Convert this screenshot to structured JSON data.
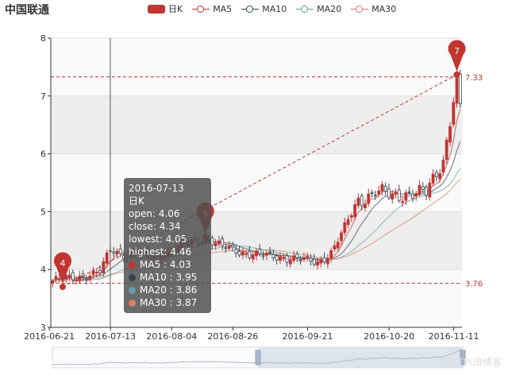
{
  "title": "中国联通",
  "watermark": "@ITPUB博客",
  "colors": {
    "up": "#c23531",
    "down": "#314656",
    "ma5": "#c23531",
    "ma10": "#2f4554",
    "ma20": "#61a0a8",
    "ma30": "#d48265"
  },
  "legend": [
    {
      "label": "日K",
      "type": "candle",
      "color": "#c23531"
    },
    {
      "label": "MA5",
      "color": "#c23531"
    },
    {
      "label": "MA10",
      "color": "#2f4554"
    },
    {
      "label": "MA20",
      "color": "#61a0a8"
    },
    {
      "label": "MA30",
      "color": "#d48265"
    }
  ],
  "chart_data": {
    "type": "candlestick",
    "title": "中国联通",
    "ylim": [
      3,
      8
    ],
    "yticks": [
      3,
      4,
      5,
      6,
      7,
      8
    ],
    "xticks": [
      "2016-06-21",
      "2016-07-13",
      "2016-08-04",
      "2016-08-26",
      "2016-09-21",
      "2016-10-20",
      "2016-11-11"
    ],
    "grid_bands": true,
    "markpoints": [
      {
        "label": "4",
        "date_index": 3,
        "value": 3.7
      },
      {
        "label": "5",
        "date_index": 45,
        "value": 4.56
      },
      {
        "label": "7",
        "date_index": 119,
        "value": 7.37
      }
    ],
    "marklines": [
      {
        "label": "7.33",
        "value": 7.33
      },
      {
        "label": "3.76",
        "value": 3.76
      }
    ],
    "axis_pointer_index": 17,
    "tooltip": {
      "date": "2016-07-13",
      "series": "日K",
      "open": "open: 4.06",
      "close": "close: 4.34",
      "lowest": "lowest: 4.05",
      "highest": "highest: 4.46",
      "ma": [
        {
          "text": "MA5 : 4.03",
          "color": "#c23531"
        },
        {
          "text": "MA10 : 3.95",
          "color": "#2f4554"
        },
        {
          "text": "MA20 : 3.86",
          "color": "#61a0a8"
        },
        {
          "text": "MA30 : 3.87",
          "color": "#d48265"
        }
      ]
    },
    "close_anchors": [
      [
        0,
        3.8
      ],
      [
        10,
        3.9
      ],
      [
        14,
        3.95
      ],
      [
        17,
        4.34
      ],
      [
        22,
        4.25
      ],
      [
        30,
        4.2
      ],
      [
        40,
        4.45
      ],
      [
        45,
        4.55
      ],
      [
        50,
        4.38
      ],
      [
        60,
        4.25
      ],
      [
        70,
        4.2
      ],
      [
        78,
        4.12
      ],
      [
        82,
        4.3
      ],
      [
        85,
        4.6
      ],
      [
        90,
        5.2
      ],
      [
        95,
        5.35
      ],
      [
        100,
        5.25
      ],
      [
        105,
        5.35
      ],
      [
        110,
        5.3
      ],
      [
        115,
        5.9
      ],
      [
        119,
        7.3
      ],
      [
        120,
        6.8
      ]
    ]
  }
}
